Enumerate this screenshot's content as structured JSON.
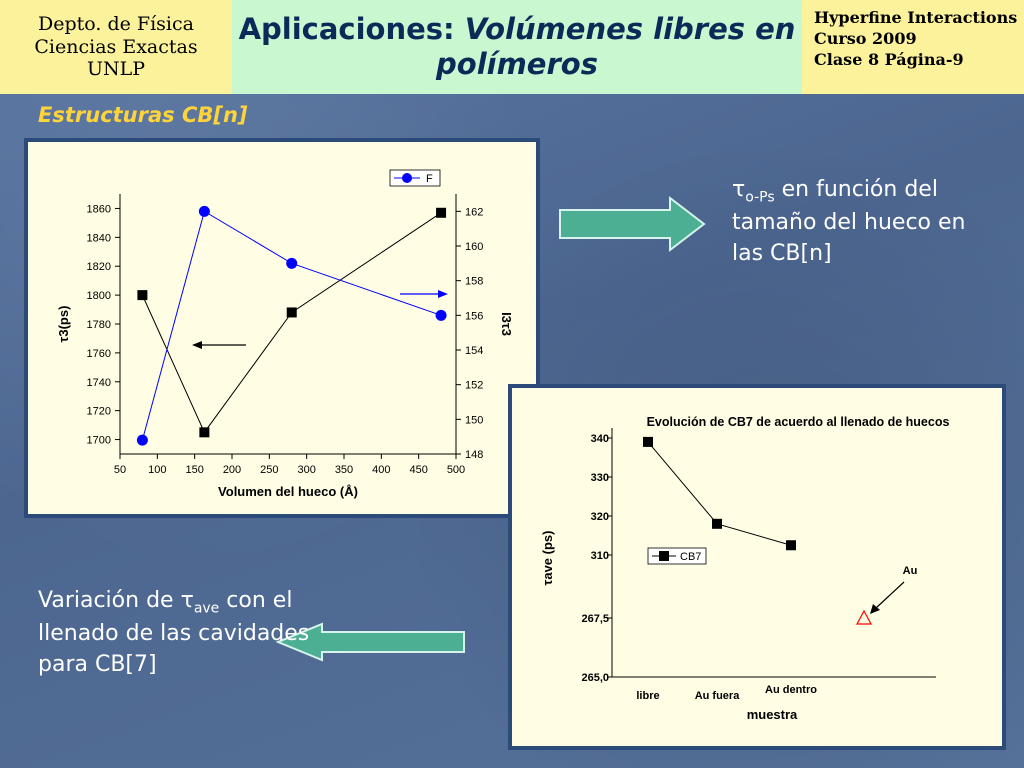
{
  "header": {
    "left_line1": "Depto. de Física",
    "left_line2": "Ciencias Exactas",
    "left_line3": "UNLP",
    "title_plain": "Aplicaciones:",
    "title_italic": "Volúmenes libres en polímeros",
    "right_line1": "Hyperfine Interactions",
    "right_line2": "Curso 2009",
    "right_line3": "Clase 8  Página-9"
  },
  "subtitle": "Estructuras CB[n]",
  "text_right": {
    "tau_symbol": "τ",
    "tau_sub": "o-Ps",
    "rest": " en función del tamaño del hueco en las CB[n]"
  },
  "text_left": {
    "prefix": " Variación de ",
    "tau_symbol": "τ",
    "tau_sub": "ave",
    "rest": " con el llenado de las cavidades para CB[7]"
  },
  "chart_data": [
    {
      "type": "scatter",
      "xlabel": "Volumen del hueco (Å)",
      "ylabel_left": "τ3(ps)",
      "ylabel_right": "I3τ3",
      "xlim": [
        50,
        500
      ],
      "x_ticks": [
        "50",
        "100",
        "150",
        "200",
        "250",
        "300",
        "350",
        "400",
        "450",
        "500"
      ],
      "ylim_left": [
        1690,
        1870
      ],
      "y_ticks_left": [
        "1700",
        "1720",
        "1740",
        "1760",
        "1780",
        "1800",
        "1820",
        "1840",
        "1860"
      ],
      "ylim_right": [
        148,
        163
      ],
      "y_ticks_right": [
        "148",
        "150",
        "152",
        "154",
        "156",
        "158",
        "160",
        "162"
      ],
      "legend": "F",
      "series": [
        {
          "name": "",
          "axis": "left",
          "marker": "square",
          "color": "#000000",
          "x": [
            80,
            163,
            280,
            480
          ],
          "y": [
            1800,
            1705,
            1788,
            1857
          ]
        },
        {
          "name": "F",
          "axis": "right",
          "marker": "circle",
          "color": "#0000ff",
          "x": [
            80,
            163,
            280,
            480
          ],
          "y": [
            148.8,
            162,
            159,
            156
          ]
        }
      ]
    },
    {
      "type": "scatter",
      "title": "Evolución de CB7 de acuerdo al llenado de huecos",
      "xlabel": "muestra",
      "ylabel": "τave (ps)",
      "categories": [
        "libre",
        "Au fuera",
        "Au dentro"
      ],
      "y_ticks": [
        "340",
        "330",
        "320",
        "310",
        "267,5",
        "265,0"
      ],
      "legend": "CB7",
      "series": [
        {
          "name": "CB7",
          "marker": "square",
          "color": "#000000",
          "values": [
            339,
            318,
            312.5
          ]
        },
        {
          "name": "Au",
          "marker": "triangle-open",
          "color": "#ff0000",
          "values": [
            267.5
          ]
        }
      ],
      "annotations": [
        "Au"
      ]
    }
  ]
}
